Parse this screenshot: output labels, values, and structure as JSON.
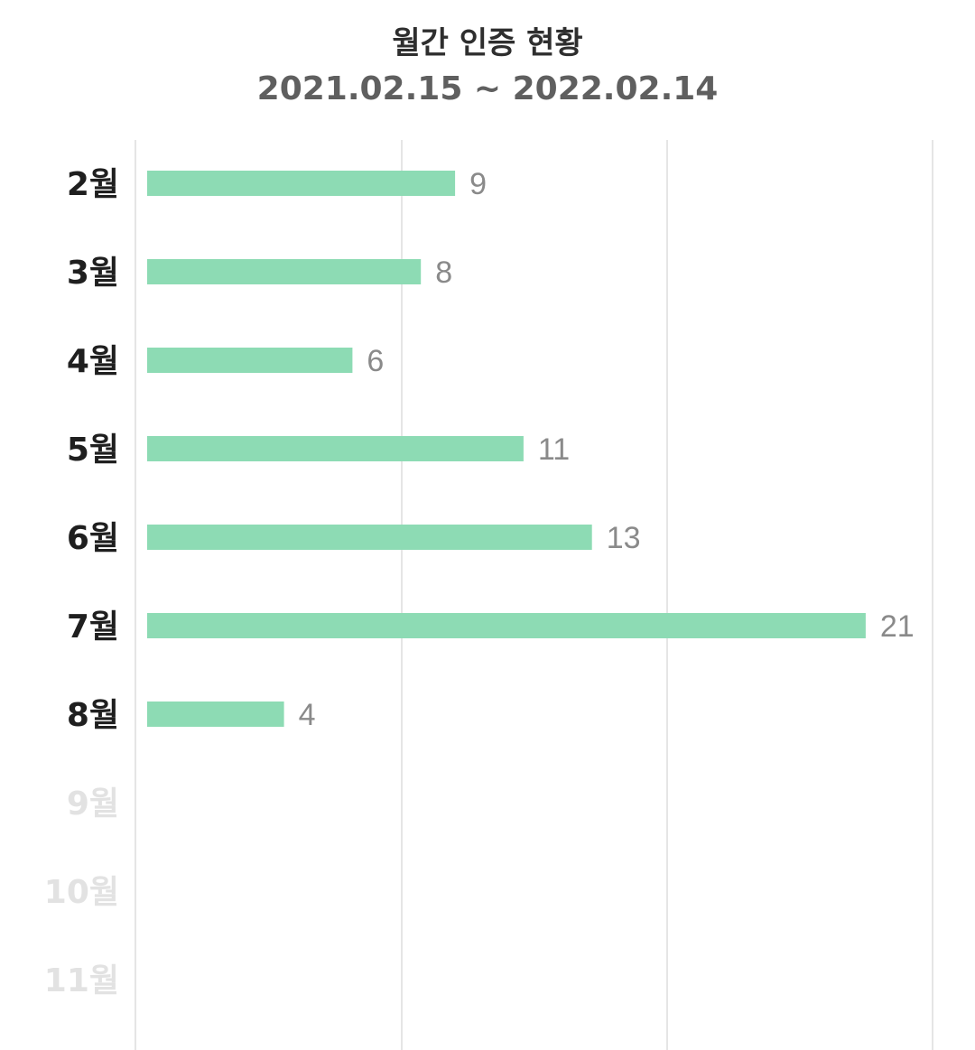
{
  "header": {
    "title": "월간 인증 현황",
    "date_range": "2021.02.15 ~ 2022.02.14"
  },
  "colors": {
    "bar": "#8ddbb4",
    "label_active": "#1f1f1f",
    "label_inactive": "#e2e2e2",
    "value_label": "#8a8a8a",
    "grid": "#e5e5e5"
  },
  "chart_data": {
    "type": "bar",
    "orientation": "horizontal",
    "title": "월간 인증 현황",
    "subtitle": "2021.02.15 ~ 2022.02.14",
    "categories": [
      "2월",
      "3월",
      "4월",
      "5월",
      "6월",
      "7월",
      "8월",
      "9월",
      "10월",
      "11월"
    ],
    "values": [
      9,
      8,
      6,
      11,
      13,
      21,
      4,
      null,
      null,
      null
    ],
    "xlim": [
      0,
      23
    ],
    "grid": true,
    "value_labels": true
  }
}
